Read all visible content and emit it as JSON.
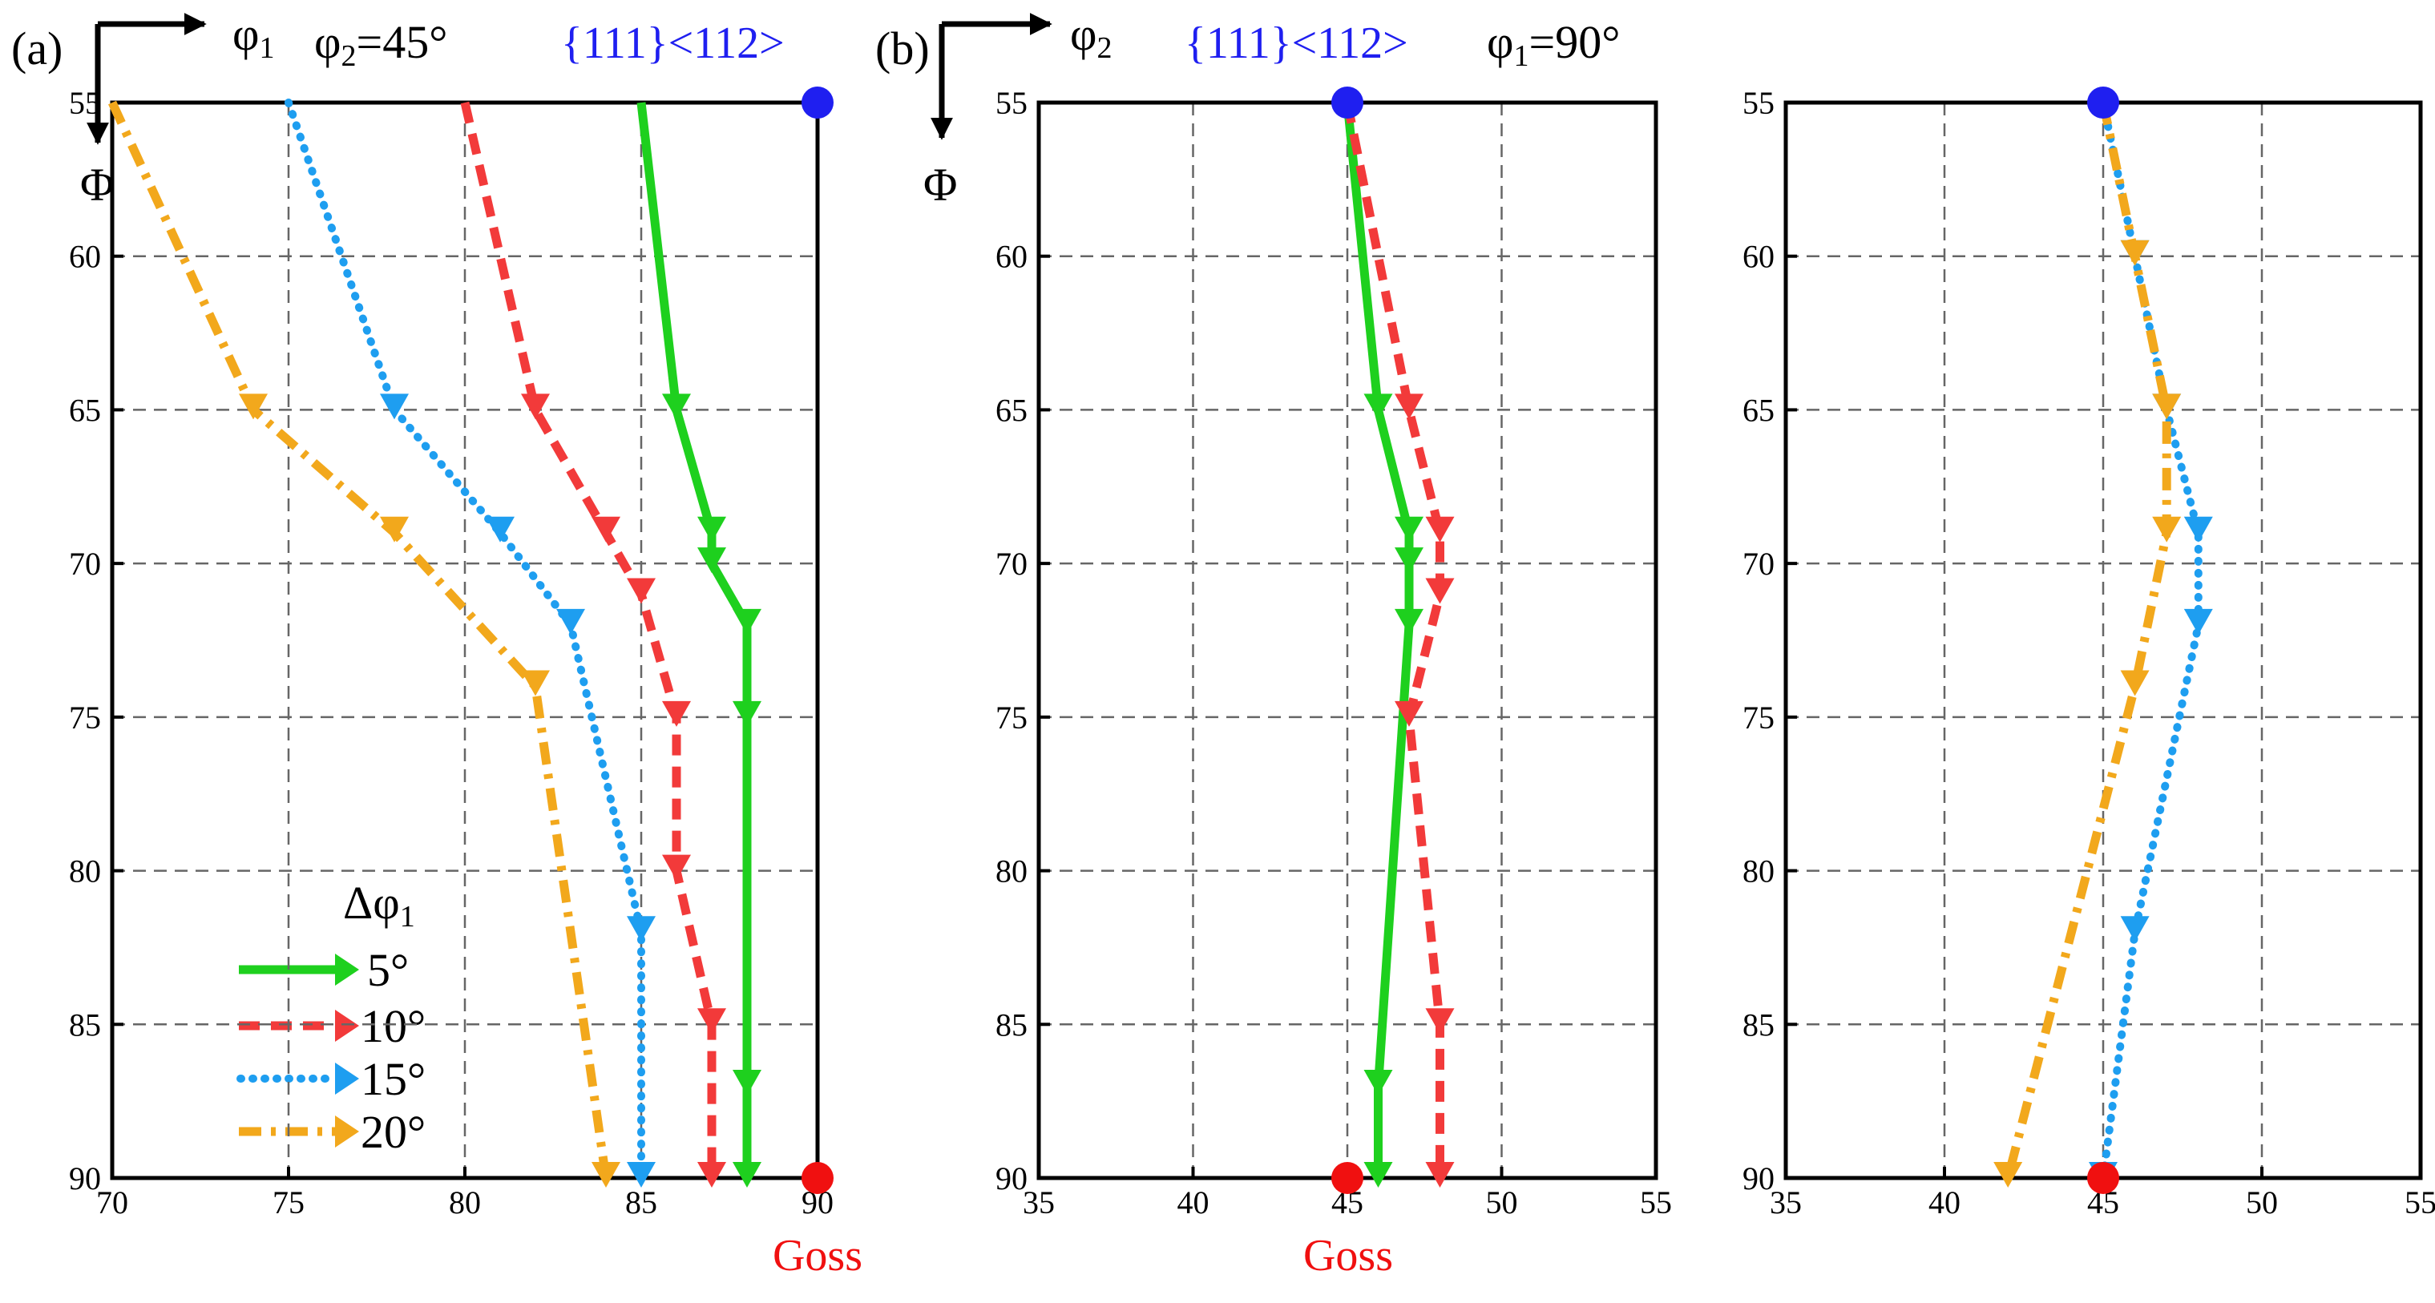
{
  "chart_data": [
    {
      "panel": "a",
      "panel_label": "(a)",
      "type": "line",
      "xlim": [
        70,
        90
      ],
      "ylim": [
        55,
        90
      ],
      "y_inverted": true,
      "xticks": [
        70,
        75,
        80,
        85,
        90
      ],
      "yticks": [
        55,
        60,
        65,
        70,
        75,
        80,
        85,
        90
      ],
      "grid": true,
      "x_axis_symbol": "φ",
      "x_axis_sub": "1",
      "y_axis_symbol": "Φ",
      "fixed_angle_label": "φ",
      "fixed_angle_sub": "2",
      "fixed_angle_value": "=45°",
      "top_annotation": "{111}<112>",
      "bottom_annotation": "Goss",
      "start_point": {
        "x": 90,
        "y": 55,
        "label": "{111}<112>",
        "color": "#1f1ff0"
      },
      "end_point": {
        "x": 90,
        "y": 90,
        "label": "Goss",
        "color": "#f01010"
      },
      "legend": {
        "title_symbol": "Δφ",
        "title_sub": "1",
        "placement": "lower-left",
        "entries": [
          "5°",
          "10°",
          "15°",
          "20°"
        ]
      },
      "series": [
        {
          "name": "5°",
          "color": "#1ed01e",
          "style": "solid",
          "x": [
            85,
            86,
            87,
            87,
            88,
            88,
            88,
            88
          ],
          "y": [
            55,
            65,
            69,
            70,
            72,
            75,
            87,
            90
          ]
        },
        {
          "name": "10°",
          "color": "#f23a3a",
          "style": "dash",
          "x": [
            80,
            82,
            84,
            85,
            86,
            86,
            87,
            87
          ],
          "y": [
            55,
            65,
            69,
            71,
            75,
            80,
            85,
            90
          ]
        },
        {
          "name": "15°",
          "color": "#1e9ef0",
          "style": "dot",
          "x": [
            75,
            78,
            81,
            83,
            85,
            85
          ],
          "y": [
            55,
            65,
            69,
            72,
            82,
            90
          ]
        },
        {
          "name": "20°",
          "color": "#f2a81c",
          "style": "dashdot",
          "x": [
            70,
            74,
            78,
            82,
            84
          ],
          "y": [
            55,
            65,
            69,
            74,
            90
          ]
        }
      ]
    },
    {
      "panel": "b",
      "panel_label": "(b)",
      "type": "line",
      "xlim": [
        35,
        55
      ],
      "ylim": [
        55,
        90
      ],
      "y_inverted": true,
      "xticks": [
        35,
        40,
        45,
        50,
        55
      ],
      "yticks": [
        55,
        60,
        65,
        70,
        75,
        80,
        85,
        90
      ],
      "grid": true,
      "x_axis_symbol": "φ",
      "x_axis_sub": "2",
      "y_axis_symbol": "Φ",
      "fixed_angle_label": "φ",
      "fixed_angle_sub": "1",
      "fixed_angle_value": "=90°",
      "top_annotation": "{111}<112>",
      "bottom_annotation": "Goss",
      "start_point": {
        "x": 45,
        "y": 55,
        "color": "#1f1ff0"
      },
      "end_point": {
        "x": 45,
        "y": 90,
        "color": "#f01010"
      },
      "series": [
        {
          "name": "5°",
          "color": "#1ed01e",
          "style": "solid",
          "x": [
            45,
            46,
            47,
            47,
            47,
            46,
            46
          ],
          "y": [
            55,
            65,
            69,
            70,
            72,
            87,
            90
          ]
        },
        {
          "name": "10°",
          "color": "#f23a3a",
          "style": "dash",
          "x": [
            45,
            47,
            48,
            48,
            47,
            48,
            48
          ],
          "y": [
            55,
            65,
            69,
            71,
            75,
            85,
            90
          ]
        }
      ]
    },
    {
      "panel": "c",
      "type": "line",
      "xlim": [
        35,
        55
      ],
      "ylim": [
        55,
        90
      ],
      "y_inverted": true,
      "xticks": [
        35,
        40,
        45,
        50,
        55
      ],
      "yticks": [
        55,
        60,
        65,
        70,
        75,
        80,
        85,
        90
      ],
      "grid": true,
      "start_point": {
        "x": 45,
        "y": 55,
        "color": "#1f1ff0"
      },
      "end_point": {
        "x": 45,
        "y": 90,
        "color": "#f01010"
      },
      "series": [
        {
          "name": "15°",
          "color": "#1e9ef0",
          "style": "dot",
          "x": [
            45,
            46,
            47,
            48,
            48,
            46,
            45
          ],
          "y": [
            55,
            60,
            65,
            69,
            72,
            82,
            90
          ]
        },
        {
          "name": "20°",
          "color": "#f2a81c",
          "style": "dashdot",
          "x": [
            45,
            46,
            47,
            47,
            46,
            42
          ],
          "y": [
            55,
            60,
            65,
            69,
            74,
            90
          ]
        }
      ]
    }
  ]
}
